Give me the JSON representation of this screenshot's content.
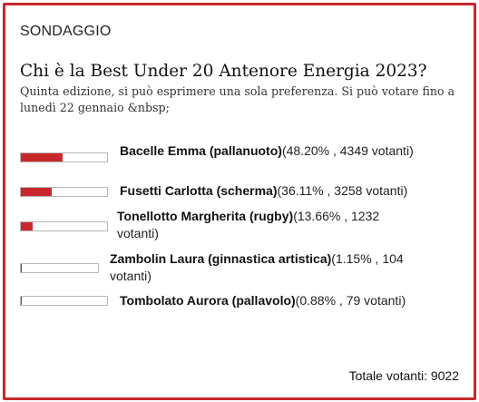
{
  "poll": {
    "section_label": "SONDAGGIO",
    "title": "Chi è la Best Under 20 Antenore Energia 2023?",
    "subtitle": "Quinta edizione, si può esprimere una sola preferenza. Si può votare fino a lunedì 22 gennaio &nbsp;",
    "accent_color": "#c8282b",
    "options": [
      {
        "name": "Bacelle Emma (pallanuoto)",
        "percent": "48.20%",
        "votes": "4349 votanti",
        "share": 0.482
      },
      {
        "name": "Fusetti Carlotta (scherma)",
        "percent": "36.11%",
        "votes": "3258 votanti",
        "share": 0.3611
      },
      {
        "name": "Tonellotto Margherita (rugby)",
        "percent": "13.66%",
        "votes": "1232 votanti",
        "share": 0.1366
      },
      {
        "name": "Zambolin Laura (ginnastica artistica)",
        "percent": "1.15%",
        "votes": "104 votanti",
        "share": 0.0115
      },
      {
        "name": "Tombolato Aurora (pallavolo)",
        "percent": "0.88%",
        "votes": "79 votanti",
        "share": 0.0088
      }
    ],
    "total_label": "Totale votanti: 9022"
  }
}
